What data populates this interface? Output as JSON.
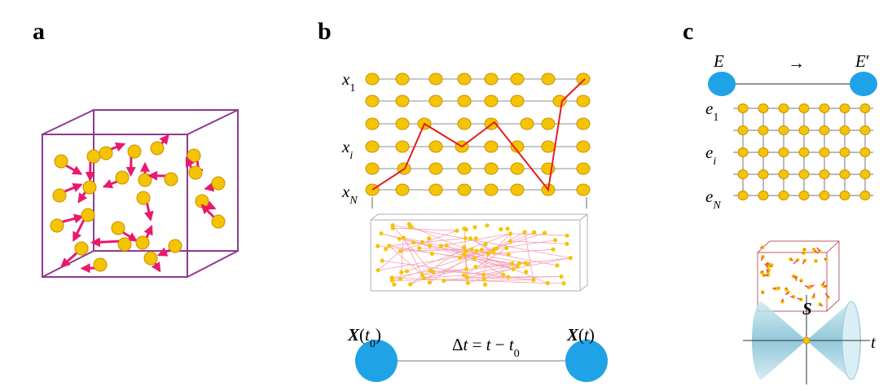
{
  "panels": [
    {
      "label": "a",
      "texts": []
    },
    {
      "label": "b",
      "texts": [
        {
          "parts": [
            {
              "t": "x",
              "s": "i"
            },
            {
              "t": "1",
              "s": "sub"
            }
          ]
        },
        {
          "parts": [
            {
              "t": "x",
              "s": "i"
            },
            {
              "t": "i",
              "s": "subi"
            }
          ]
        },
        {
          "parts": [
            {
              "t": "x",
              "s": "i"
            },
            {
              "t": "N",
              "s": "subi"
            }
          ]
        },
        {
          "parts": [
            {
              "t": "X",
              "s": "bi"
            },
            {
              "t": "(",
              "s": "r"
            },
            {
              "t": "t",
              "s": "i"
            },
            {
              "t": "0",
              "s": "sub"
            },
            {
              "t": ")",
              "s": "r"
            }
          ]
        },
        {
          "parts": [
            {
              "t": "X",
              "s": "bi"
            },
            {
              "t": "(",
              "s": "r"
            },
            {
              "t": "t",
              "s": "i"
            },
            {
              "t": ")",
              "s": "r"
            }
          ]
        },
        {
          "parts": [
            {
              "t": "Δ",
              "s": "r"
            },
            {
              "t": "t",
              "s": "i"
            },
            {
              "t": " = ",
              "s": "r"
            },
            {
              "t": "t",
              "s": "i"
            },
            {
              "t": " − ",
              "s": "r"
            },
            {
              "t": "t",
              "s": "i"
            },
            {
              "t": "0",
              "s": "sub"
            }
          ]
        }
      ]
    },
    {
      "label": "c",
      "texts": [
        {
          "parts": [
            {
              "t": "E",
              "s": "i"
            }
          ]
        },
        {
          "parts": [
            {
              "t": "→",
              "s": "r"
            }
          ]
        },
        {
          "parts": [
            {
              "t": "E",
              "s": "i"
            },
            {
              "t": "′",
              "s": "r"
            }
          ]
        },
        {
          "parts": [
            {
              "t": "e",
              "s": "i"
            },
            {
              "t": "1",
              "s": "sub"
            }
          ]
        },
        {
          "parts": [
            {
              "t": "e",
              "s": "i"
            },
            {
              "t": "i",
              "s": "subi"
            }
          ]
        },
        {
          "parts": [
            {
              "t": "e",
              "s": "i"
            },
            {
              "t": "N",
              "s": "subi"
            }
          ]
        },
        {
          "parts": [
            {
              "t": "S",
              "s": "bi"
            }
          ]
        },
        {
          "parts": [
            {
              "t": "t",
              "s": "i"
            }
          ]
        }
      ]
    }
  ]
}
